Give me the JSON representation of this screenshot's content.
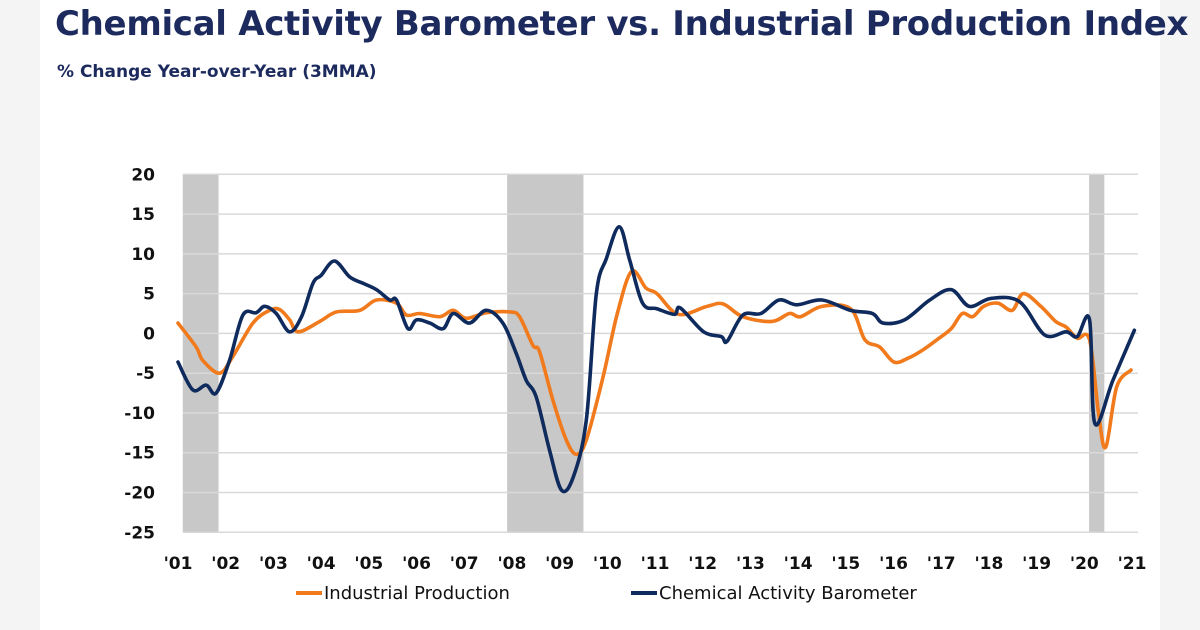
{
  "chart_data": {
    "type": "line",
    "title": "Chemical Activity Barometer vs. Industrial Production Index",
    "subtitle": "% Change Year-over-Year (3MMA)",
    "xlabel": "",
    "ylabel": "",
    "ylim": [
      -25,
      20
    ],
    "yticks": [
      "20",
      "15",
      "10",
      "5",
      "0",
      "-5",
      "-10",
      "-15",
      "-20",
      "-25"
    ],
    "xlim": [
      2001,
      2021
    ],
    "xticks": [
      "'01",
      "'02",
      "'03",
      "'04",
      "'05",
      "'06",
      "'07",
      "'08",
      "'09",
      "'10",
      "'11",
      "'12",
      "'13",
      "'14",
      "'15",
      "'16",
      "'17",
      "'18",
      "'19",
      "'20",
      "'21"
    ],
    "grid": "horizontal",
    "legend_position": "bottom",
    "recessions": [
      [
        2001.1,
        2001.85
      ],
      [
        2007.9,
        2009.5
      ],
      [
        2020.1,
        2020.42
      ]
    ],
    "recession_color": "#c8c8c8",
    "series": [
      {
        "name": "Industrial Production",
        "color": "#f07a1c",
        "points": [
          [
            2001.0,
            1.3
          ],
          [
            2001.38,
            -1.7
          ],
          [
            2001.52,
            -3.4
          ],
          [
            2001.87,
            -5.0
          ],
          [
            2002.15,
            -2.9
          ],
          [
            2002.57,
            1.3
          ],
          [
            2002.92,
            2.9
          ],
          [
            2003.13,
            3.0
          ],
          [
            2003.34,
            1.7
          ],
          [
            2003.52,
            0.2
          ],
          [
            2003.97,
            1.5
          ],
          [
            2004.32,
            2.7
          ],
          [
            2004.81,
            2.9
          ],
          [
            2005.16,
            4.2
          ],
          [
            2005.58,
            3.8
          ],
          [
            2005.79,
            2.3
          ],
          [
            2006.07,
            2.5
          ],
          [
            2006.49,
            2.1
          ],
          [
            2006.77,
            2.9
          ],
          [
            2007.04,
            1.9
          ],
          [
            2007.46,
            2.6
          ],
          [
            2007.95,
            2.7
          ],
          [
            2008.16,
            2.1
          ],
          [
            2008.44,
            -1.5
          ],
          [
            2008.58,
            -2.3
          ],
          [
            2008.86,
            -8.4
          ],
          [
            2009.14,
            -13.4
          ],
          [
            2009.35,
            -15.2
          ],
          [
            2009.56,
            -13.4
          ],
          [
            2009.91,
            -5.5
          ],
          [
            2010.21,
            2.5
          ],
          [
            2010.51,
            7.8
          ],
          [
            2010.81,
            5.7
          ],
          [
            2011.04,
            5.0
          ],
          [
            2011.49,
            2.4
          ],
          [
            2012.09,
            3.4
          ],
          [
            2012.43,
            3.7
          ],
          [
            2012.84,
            2.1
          ],
          [
            2013.45,
            1.5
          ],
          [
            2013.82,
            2.5
          ],
          [
            2014.05,
            2.1
          ],
          [
            2014.5,
            3.4
          ],
          [
            2015.1,
            3.1
          ],
          [
            2015.4,
            -0.8
          ],
          [
            2015.71,
            -1.7
          ],
          [
            2016.01,
            -3.6
          ],
          [
            2016.31,
            -3.1
          ],
          [
            2016.61,
            -2.1
          ],
          [
            2016.91,
            -0.8
          ],
          [
            2017.21,
            0.6
          ],
          [
            2017.44,
            2.5
          ],
          [
            2017.66,
            2.1
          ],
          [
            2017.89,
            3.4
          ],
          [
            2018.19,
            3.8
          ],
          [
            2018.49,
            2.9
          ],
          [
            2018.72,
            5.0
          ],
          [
            2019.09,
            3.4
          ],
          [
            2019.4,
            1.5
          ],
          [
            2019.62,
            0.8
          ],
          [
            2019.85,
            -0.6
          ],
          [
            2020.11,
            -0.8
          ],
          [
            2020.3,
            -10.1
          ],
          [
            2020.45,
            -14.3
          ],
          [
            2020.68,
            -6.7
          ],
          [
            2020.98,
            -4.6
          ]
        ]
      },
      {
        "name": "Chemical Activity Barometer",
        "color": "#0f2a5c",
        "points": [
          [
            2001.0,
            -3.6
          ],
          [
            2001.31,
            -7.1
          ],
          [
            2001.59,
            -6.5
          ],
          [
            2001.8,
            -7.5
          ],
          [
            2002.08,
            -3.4
          ],
          [
            2002.36,
            2.3
          ],
          [
            2002.64,
            2.6
          ],
          [
            2002.82,
            3.4
          ],
          [
            2003.06,
            2.5
          ],
          [
            2003.34,
            0.2
          ],
          [
            2003.59,
            2.1
          ],
          [
            2003.83,
            6.3
          ],
          [
            2004.0,
            7.3
          ],
          [
            2004.28,
            9.1
          ],
          [
            2004.6,
            7.1
          ],
          [
            2004.88,
            6.3
          ],
          [
            2005.16,
            5.5
          ],
          [
            2005.44,
            4.2
          ],
          [
            2005.58,
            4.2
          ],
          [
            2005.82,
            0.6
          ],
          [
            2006.0,
            1.7
          ],
          [
            2006.28,
            1.3
          ],
          [
            2006.56,
            0.6
          ],
          [
            2006.77,
            2.5
          ],
          [
            2007.11,
            1.3
          ],
          [
            2007.46,
            2.9
          ],
          [
            2007.81,
            1.3
          ],
          [
            2008.09,
            -2.5
          ],
          [
            2008.3,
            -5.9
          ],
          [
            2008.51,
            -8.0
          ],
          [
            2008.79,
            -14.7
          ],
          [
            2009.04,
            -19.7
          ],
          [
            2009.29,
            -18.0
          ],
          [
            2009.56,
            -10.9
          ],
          [
            2009.77,
            5.0
          ],
          [
            2009.98,
            9.4
          ],
          [
            2010.25,
            13.4
          ],
          [
            2010.47,
            9.2
          ],
          [
            2010.74,
            3.8
          ],
          [
            2011.04,
            3.1
          ],
          [
            2011.41,
            2.4
          ],
          [
            2011.53,
            3.2
          ],
          [
            2012.02,
            0.2
          ],
          [
            2012.39,
            -0.4
          ],
          [
            2012.51,
            -1.0
          ],
          [
            2012.84,
            2.3
          ],
          [
            2013.22,
            2.5
          ],
          [
            2013.6,
            4.2
          ],
          [
            2013.97,
            3.6
          ],
          [
            2014.5,
            4.2
          ],
          [
            2015.1,
            2.9
          ],
          [
            2015.56,
            2.5
          ],
          [
            2015.78,
            1.3
          ],
          [
            2016.23,
            1.7
          ],
          [
            2016.76,
            4.2
          ],
          [
            2017.21,
            5.5
          ],
          [
            2017.59,
            3.4
          ],
          [
            2018.04,
            4.4
          ],
          [
            2018.64,
            4.0
          ],
          [
            2019.17,
            -0.2
          ],
          [
            2019.62,
            0.2
          ],
          [
            2019.85,
            -0.4
          ],
          [
            2020.11,
            1.7
          ],
          [
            2020.22,
            -11.3
          ],
          [
            2020.6,
            -5.9
          ],
          [
            2021.05,
            0.4
          ]
        ]
      }
    ]
  }
}
